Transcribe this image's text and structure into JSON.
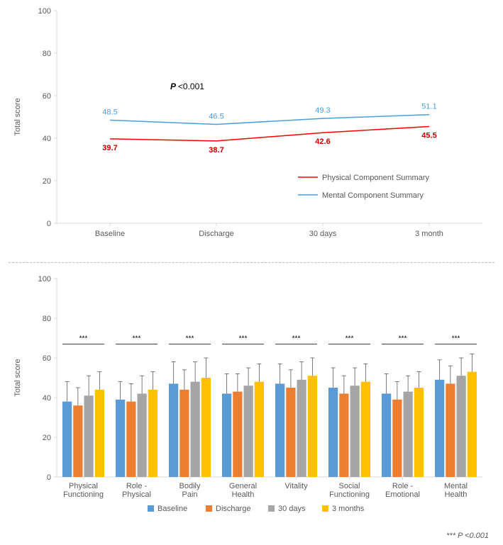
{
  "line_chart": {
    "type": "line",
    "categories": [
      "Baseline",
      "Discharge",
      "30 days",
      "3 month"
    ],
    "series": [
      {
        "name": "Physical Component Summary",
        "color": "#ff0000",
        "values": [
          39.7,
          38.7,
          42.6,
          45.5
        ],
        "label_dy": 16,
        "label_color": "#c00000",
        "label_weight": "bold"
      },
      {
        "name": "Mental Component Summary",
        "color": "#4a9eda",
        "values": [
          48.5,
          46.5,
          49.3,
          51.1
        ],
        "label_dy": -8,
        "label_color": "#4a9eda",
        "label_weight": "normal"
      }
    ],
    "ylim": [
      0,
      100
    ],
    "ytick_step": 20,
    "ylabel": "Total score",
    "p_annotation": "P <0.001",
    "axis_color": "#d9d9d9",
    "text_color": "#595959",
    "tick_fontsize": 11,
    "label_fontsize": 11,
    "line_width": 1.5
  },
  "bar_chart": {
    "type": "bar",
    "categories": [
      "Physical Functioning",
      "Role - Physical",
      "Bodily Pain",
      "General Health",
      "Vitality",
      "Social Functioning",
      "Role - Emotional",
      "Mental Health"
    ],
    "series": [
      {
        "name": "Baseline",
        "color": "#5b9bd5",
        "values": [
          38,
          39,
          47,
          42,
          47,
          45,
          42,
          49
        ],
        "err": [
          10,
          9,
          11,
          10,
          10,
          10,
          10,
          10
        ]
      },
      {
        "name": "Discharge",
        "color": "#ed7d31",
        "values": [
          36,
          38,
          44,
          43,
          45,
          42,
          39,
          47
        ],
        "err": [
          9,
          9,
          10,
          9,
          9,
          9,
          9,
          9
        ]
      },
      {
        "name": "30 days",
        "color": "#a5a5a5",
        "values": [
          41,
          42,
          48,
          46,
          49,
          46,
          43,
          51
        ],
        "err": [
          10,
          9,
          10,
          9,
          9,
          9,
          8,
          9
        ]
      },
      {
        "name": "3 months",
        "color": "#ffc000",
        "values": [
          44,
          44,
          50,
          48,
          51,
          48,
          45,
          53
        ],
        "err": [
          9,
          9,
          10,
          9,
          9,
          9,
          8,
          9
        ]
      }
    ],
    "sig_marker": "***",
    "sig_line_y": 67,
    "ylim": [
      0,
      100
    ],
    "ytick_step": 20,
    "ylabel": "Total score",
    "axis_color": "#d9d9d9",
    "text_color": "#595959",
    "tick_fontsize": 11,
    "bar_gap": 2,
    "group_gap": 16,
    "error_color": "#595959"
  },
  "footnote": "*** P <0.001"
}
